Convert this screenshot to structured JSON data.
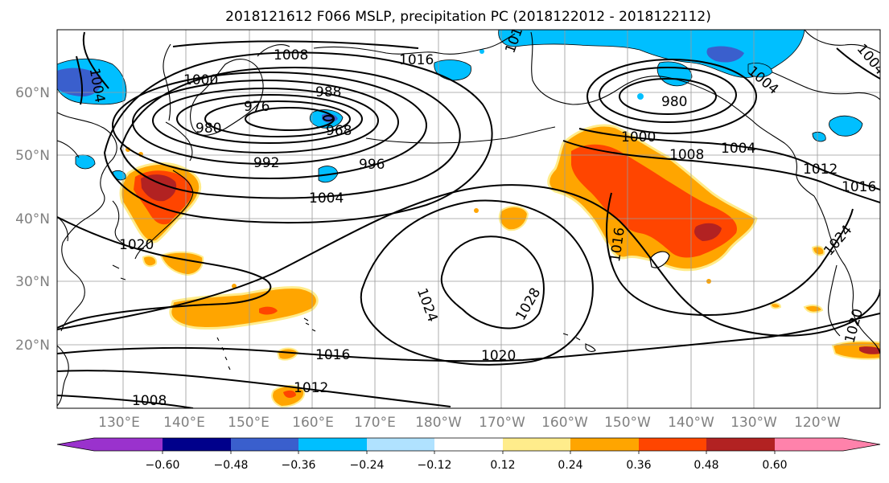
{
  "title": "2018121612 F066 MSLP, precipitation PC (2018122012 - 2018122112)",
  "latitude_labels": [
    "60°N",
    "50°N",
    "40°N",
    "30°N",
    "20°N"
  ],
  "longitude_labels": [
    "130°E",
    "140°E",
    "150°E",
    "160°E",
    "170°E",
    "180°W",
    "170°W",
    "160°W",
    "150°W",
    "140°W",
    "130°W",
    "120°W"
  ],
  "colorbar": {
    "colors": [
      "#9a32cd",
      "#00008b",
      "#3a5fcd",
      "#00bfff",
      "#b0e2ff",
      "#ffffff",
      "#ffec8b",
      "#ffa500",
      "#ff4500",
      "#b22222",
      "#ff82ab"
    ],
    "tick_labels": [
      "−0.60",
      "−0.48",
      "−0.36",
      "−0.24",
      "−0.12",
      "0.12",
      "0.24",
      "0.36",
      "0.48",
      "0.60"
    ]
  },
  "isobar_labels": [
    "1008",
    "1016",
    "1000",
    "976",
    "988",
    "968",
    "980",
    "992",
    "996",
    "1004",
    "1004",
    "1000",
    "980",
    "1008",
    "1004",
    "1012",
    "1016",
    "1024",
    "1016",
    "1028",
    "1024",
    "1020",
    "1016",
    "1012",
    "1008",
    "1020",
    "1004",
    "1020",
    "1004",
    "1016"
  ]
}
